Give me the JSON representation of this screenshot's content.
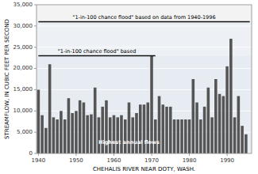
{
  "chart_data": {
    "type": "bar",
    "xlabel": "CHEHALIS RIVER NEAR DOTY, WASH.",
    "ylabel": "STREAMFLOW, IN CUBIC FEET PER SECOND",
    "x": [
      1940,
      1941,
      1942,
      1943,
      1944,
      1945,
      1946,
      1947,
      1948,
      1949,
      1950,
      1951,
      1952,
      1953,
      1954,
      1955,
      1956,
      1957,
      1958,
      1959,
      1960,
      1961,
      1962,
      1963,
      1964,
      1965,
      1966,
      1967,
      1968,
      1969,
      1970,
      1971,
      1972,
      1973,
      1974,
      1975,
      1976,
      1977,
      1978,
      1979,
      1980,
      1981,
      1982,
      1983,
      1984,
      1985,
      1986,
      1987,
      1988,
      1989,
      1990,
      1991,
      1992,
      1993,
      1994,
      1995
    ],
    "values": [
      15000,
      9000,
      6000,
      21000,
      8500,
      8000,
      10000,
      8000,
      13000,
      9500,
      10000,
      12500,
      12000,
      9000,
      9200,
      15500,
      8500,
      11000,
      12500,
      8500,
      9000,
      8500,
      9000,
      8000,
      12000,
      8500,
      9500,
      11500,
      11500,
      12000,
      23000,
      8000,
      13500,
      11500,
      11000,
      11000,
      8000,
      8000,
      8000,
      8000,
      8000,
      17500,
      12000,
      8000,
      11000,
      15500,
      8500,
      17500,
      14000,
      13500,
      20500,
      27000,
      8500,
      13500,
      6500,
      4500
    ],
    "color": "#555555",
    "xlim": [
      1939.5,
      1996.5
    ],
    "xticks": [
      1940,
      1950,
      1960,
      1970,
      1980,
      1990
    ],
    "ylim": [
      0,
      35000
    ],
    "yticks": [
      0,
      {
        "value": 5000,
        "label": "5,000"
      },
      {
        "value": 10000,
        "label": "10,000"
      },
      {
        "value": 15000,
        "label": "15,000"
      },
      {
        "value": 20000,
        "label": "20,000"
      },
      {
        "value": 25000,
        "label": "25,000"
      },
      {
        "value": 30000,
        "label": "30,000"
      },
      {
        "value": 35000,
        "label": "35,000"
      }
    ],
    "reference_lines": [
      {
        "label": "\"1-in-100 chance flood\" based on data from 1940-1996",
        "y": 31000,
        "x_start": 1940,
        "x_end": 1996,
        "color": "#111111"
      },
      {
        "label": "\"1-in-100 chance flood\" based",
        "y": 23000,
        "x_start": 1940,
        "x_end": 1971,
        "color": "#111111"
      }
    ],
    "annotations": [
      {
        "text": "Highest annual flows",
        "x": 1964,
        "y": 2500
      }
    ]
  }
}
